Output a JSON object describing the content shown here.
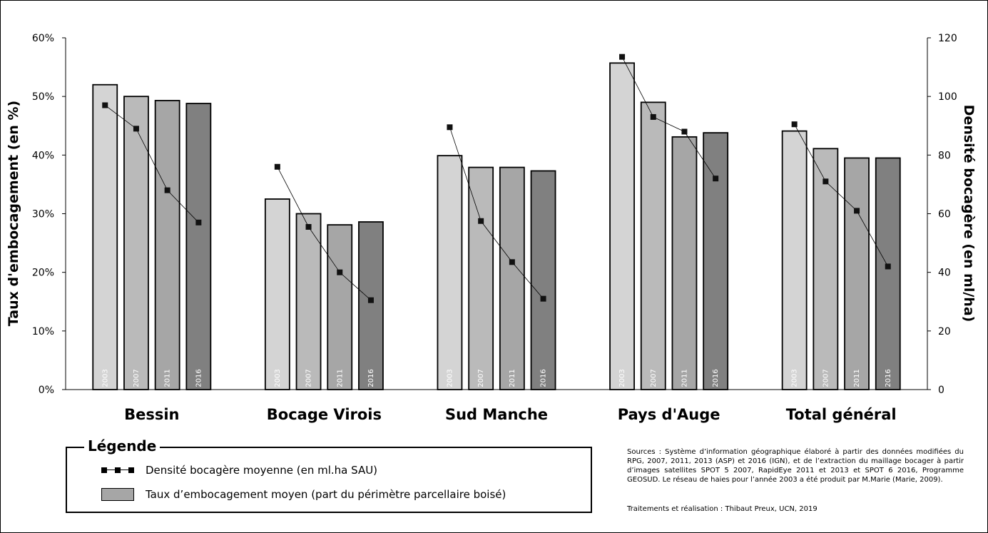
{
  "chart_data": {
    "type": "bar",
    "categories": [
      "Bessin",
      "Bocage Virois",
      "Sud Manche",
      "Pays d'Auge",
      "Total général"
    ],
    "bar_year_labels": [
      "2003",
      "2007",
      "2011",
      "2016"
    ],
    "bar_colors": [
      "#d4d4d4",
      "#bababa",
      "#a6a6a6",
      "#808080"
    ],
    "series": [
      {
        "name": "Taux d’embocagement moyen (part du périmètre parcellaire boisé)",
        "axis": "left",
        "type": "bar",
        "values": [
          [
            52.0,
            50.0,
            49.3,
            48.8
          ],
          [
            32.5,
            30.0,
            28.1,
            28.6
          ],
          [
            39.9,
            37.9,
            37.9,
            37.3
          ],
          [
            55.7,
            49.0,
            43.1,
            43.8
          ],
          [
            44.1,
            41.1,
            39.5,
            39.5
          ]
        ]
      },
      {
        "name": "Densité bocagère moyenne (en ml.ha SAU)",
        "axis": "right",
        "type": "line",
        "values": [
          [
            97,
            89,
            68,
            57
          ],
          [
            76,
            55.5,
            40,
            30.5
          ],
          [
            89.5,
            57.5,
            43.5,
            31
          ],
          [
            113.5,
            93,
            88,
            72
          ],
          [
            90.5,
            71,
            61,
            42
          ]
        ]
      }
    ],
    "ylabel_left": "Taux d'embocagement (en %)",
    "ylabel_right": "Densité bocagère (en ml/ha)",
    "ylim_left": [
      0,
      60
    ],
    "yticks_left": [
      "0%",
      "10%",
      "20%",
      "30%",
      "40%",
      "50%",
      "60%"
    ],
    "ylim_right": [
      0,
      120
    ],
    "yticks_right": [
      "0",
      "20",
      "40",
      "60",
      "80",
      "100",
      "120"
    ],
    "grid": false,
    "legend_position": "bottom-left"
  },
  "legend": {
    "title": "Légende",
    "line_label": "Densité bocagère moyenne (en ml.ha SAU)",
    "bar_label": "Taux d’embocagement moyen (part du périmètre parcellaire boisé)"
  },
  "sources": "Sources : Système d’information géographique élaboré à partir des données modifiées du RPG, 2007, 2011, 2013 (ASP) et 2016 (IGN), et de l’extraction du maillage bocager à partir d’images satellites SPOT 5 2007, RapidEye 2011 et 2013 et SPOT 6 2016, Programme GEOSUD. Le réseau de haies pour l’année 2003 a été produit par M.Marie (Marie, 2009).",
  "credits": "Traitements et réalisation : Thibaut Preux, UCN, 2019"
}
